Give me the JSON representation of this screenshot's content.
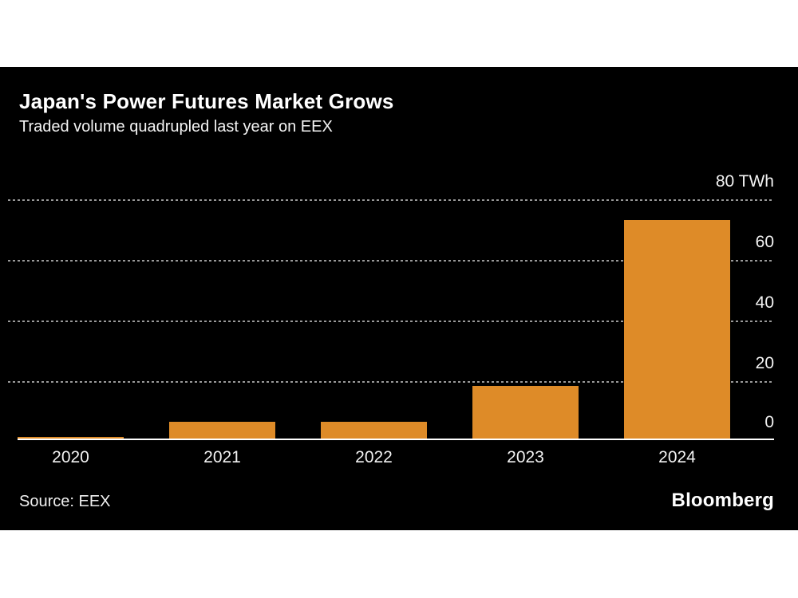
{
  "header": {
    "title": "Japan's Power Futures Market Grows",
    "subtitle": "Traded volume quadrupled last year on EEX"
  },
  "footer": {
    "source": "Source: EEX",
    "brand": "Bloomberg"
  },
  "colors": {
    "bar": "#de8b28",
    "panel_background": "#000000",
    "page_background": "#ffffff",
    "gridline": "#9a9a9a",
    "text": "#ffffff"
  },
  "chart_data": {
    "type": "bar",
    "title": "Japan's Power Futures Market Grows",
    "subtitle": "Traded volume quadrupled last year on EEX",
    "categories": [
      "2020",
      "2021",
      "2022",
      "2023",
      "2024"
    ],
    "values": [
      1,
      6,
      6,
      18,
      73
    ],
    "unit": "TWh",
    "ylabel": "TWh",
    "xlabel": "",
    "ylim": [
      0,
      80
    ],
    "y_ticks": [
      0,
      20,
      40,
      60,
      80
    ],
    "y_tick_labels": [
      "0",
      "20",
      "40",
      "60",
      "80 TWh"
    ],
    "axis_side": "right",
    "grid": "horizontal-dotted",
    "legend": "none",
    "source": "EEX"
  }
}
